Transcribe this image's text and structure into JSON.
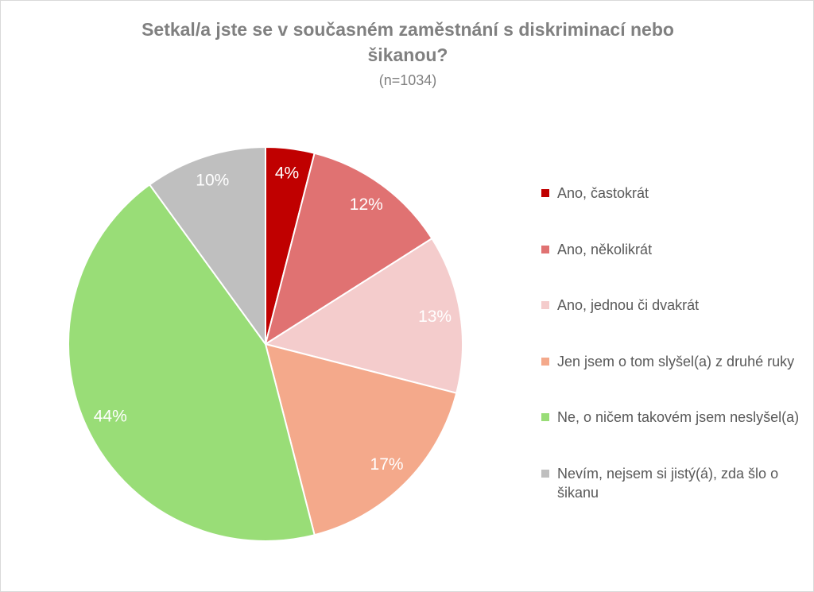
{
  "chart_data": {
    "type": "pie",
    "title": "Setkal/a jste se v současném zaměstnání s diskriminací nebo šikanou?",
    "subtitle": "(n=1034)",
    "categories": [
      "Ano, častokrát",
      "Ano, několikrát",
      "Ano, jednou či dvakrát",
      "Jen jsem o tom slyšel(a) z druhé ruky",
      "Ne, o ničem takovém jsem neslyšel(a)",
      "Nevím, nejsem si jistý(á), zda šlo o šikanu"
    ],
    "values": [
      4,
      12,
      13,
      17,
      44,
      10
    ],
    "value_labels": [
      "4%",
      "12%",
      "13%",
      "17%",
      "44%",
      "10%"
    ],
    "colors": [
      "#c00000",
      "#e07272",
      "#f4cccc",
      "#f4a98b",
      "#99dd77",
      "#bfbfbf"
    ],
    "legend": "right"
  }
}
